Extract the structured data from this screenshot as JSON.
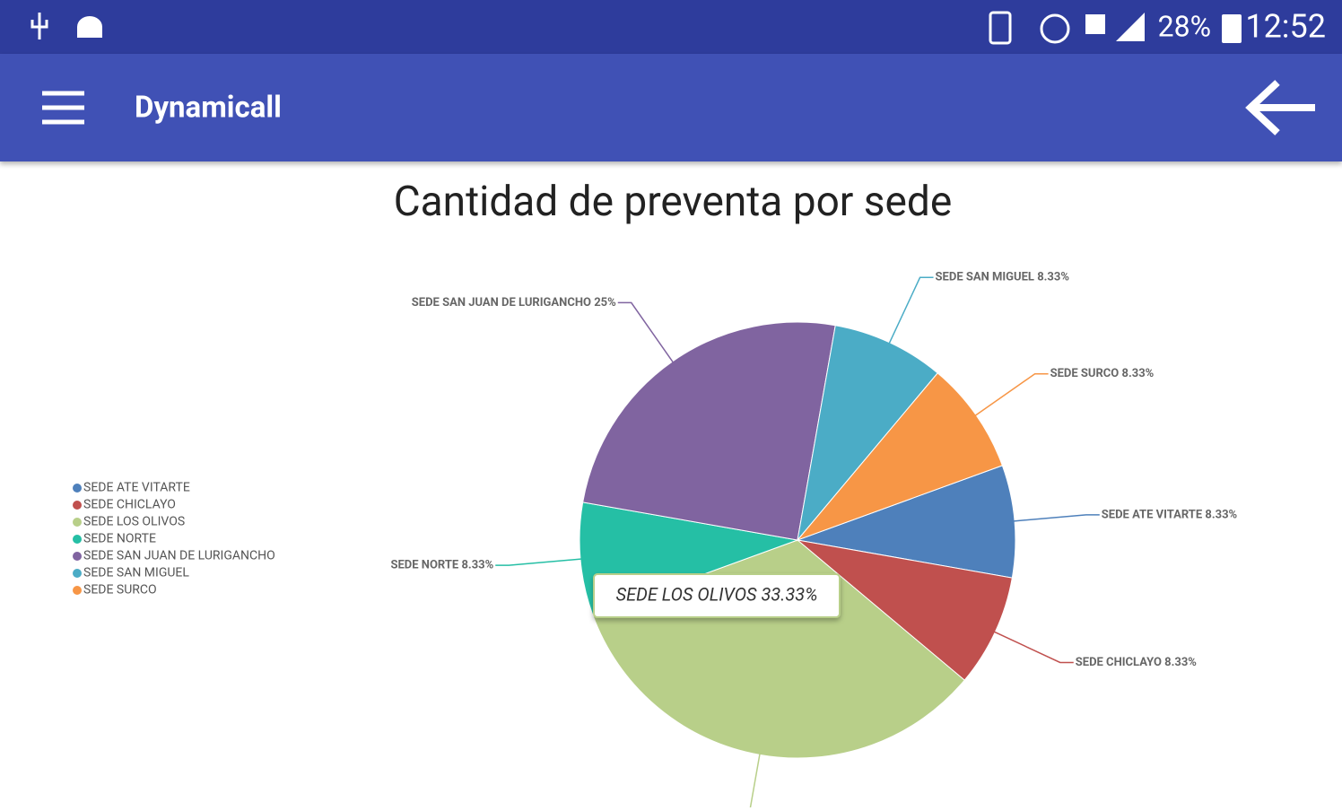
{
  "status_bar": {
    "battery": "28%",
    "time": "12:52"
  },
  "app_bar": {
    "title": "Dynamicall"
  },
  "chart_data": {
    "type": "pie",
    "title": "Cantidad de preventa por sede",
    "categories": [
      "SEDE ATE VITARTE",
      "SEDE CHICLAYO",
      "SEDE LOS OLIVOS",
      "SEDE NORTE",
      "SEDE SAN JUAN DE LURIGANCHO",
      "SEDE SAN MIGUEL",
      "SEDE SURCO"
    ],
    "values": [
      8.33,
      8.33,
      33.33,
      8.33,
      25,
      8.33,
      8.33
    ],
    "value_labels": [
      "SEDE ATE VITARTE 8.33%",
      "SEDE CHICLAYO 8.33%",
      null,
      "SEDE NORTE 8.33%",
      "SEDE SAN JUAN DE LURIGANCHO 25%",
      "SEDE SAN MIGUEL 8.33%",
      "SEDE SURCO 8.33%"
    ],
    "colors": [
      "#4e80bb",
      "#c0504e",
      "#b8cf89",
      "#25bfa5",
      "#8064a0",
      "#4bacc6",
      "#f79646"
    ],
    "tooltip": "SEDE LOS OLIVOS 33.33%",
    "legend": "left"
  }
}
